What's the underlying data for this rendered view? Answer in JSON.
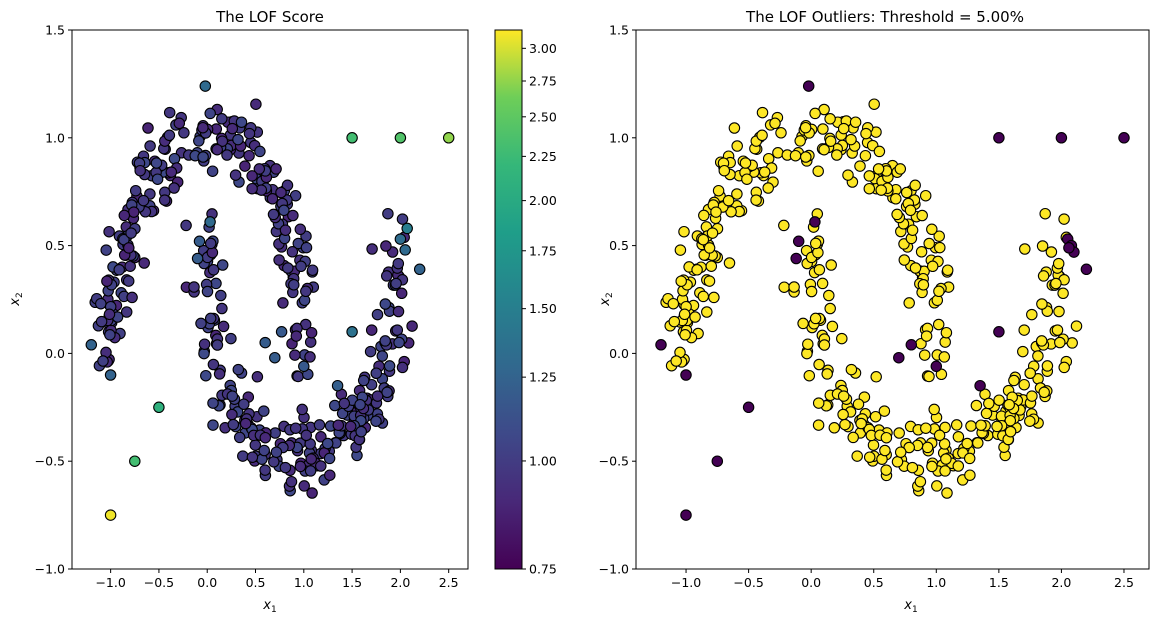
{
  "chart_data": [
    {
      "type": "scatter",
      "title": "The LOF Score",
      "xlabel_var": "x",
      "xlabel_sub": "1",
      "ylabel_var": "x",
      "ylabel_sub": "2",
      "xlim": [
        -1.4,
        2.7
      ],
      "ylim": [
        -1.0,
        1.5
      ],
      "xticks": [
        -1.0,
        -0.5,
        0.0,
        0.5,
        1.0,
        1.5,
        2.0,
        2.5
      ],
      "xtick_labels": [
        "−1.0",
        "−0.5",
        "0.0",
        "0.5",
        "1.0",
        "1.5",
        "2.0",
        "2.5"
      ],
      "yticks": [
        -1.0,
        -0.5,
        0.0,
        0.5,
        1.0,
        1.5
      ],
      "ytick_labels": [
        "−1.0",
        "−0.5",
        "0.0",
        "0.5",
        "1.0",
        "1.5"
      ],
      "color_encoding": "LOF score",
      "colormap": "viridis",
      "colorbar": {
        "scale": "log",
        "range": [
          0.75,
          3.15
        ],
        "ticks": [
          0.75,
          1.0,
          1.25,
          1.5,
          1.75,
          2.0,
          2.25,
          2.5,
          2.75,
          3.0
        ],
        "tick_labels": [
          "0.75",
          "1.00",
          "1.25",
          "1.50",
          "1.75",
          "2.00",
          "2.25",
          "2.50",
          "2.75",
          "3.00"
        ]
      },
      "outlier_points": [
        {
          "x": 1.5,
          "y": 1.0,
          "score": 2.3
        },
        {
          "x": 2.0,
          "y": 1.0,
          "score": 2.4
        },
        {
          "x": 2.5,
          "y": 1.0,
          "score": 2.75
        },
        {
          "x": -1.0,
          "y": -0.75,
          "score": 3.1
        },
        {
          "x": -0.75,
          "y": -0.5,
          "score": 2.3
        },
        {
          "x": -0.5,
          "y": -0.25,
          "score": 2.1
        },
        {
          "x": 2.07,
          "y": 0.58,
          "score": 1.5
        },
        {
          "x": 1.5,
          "y": 0.1,
          "score": 1.38
        },
        {
          "x": -1.0,
          "y": -0.1,
          "score": 1.25
        },
        {
          "x": -0.02,
          "y": 1.24,
          "score": 1.3
        },
        {
          "x": 0.03,
          "y": 0.61,
          "score": 1.3
        },
        {
          "x": 2.0,
          "y": 0.53,
          "score": 1.32
        },
        {
          "x": 2.05,
          "y": 0.48,
          "score": 1.3
        },
        {
          "x": 2.2,
          "y": 0.39,
          "score": 1.25
        },
        {
          "x": -1.2,
          "y": 0.04,
          "score": 1.25
        },
        {
          "x": 1.35,
          "y": -0.15,
          "score": 1.22
        },
        {
          "x": 0.7,
          "y": -0.02,
          "score": 1.2
        },
        {
          "x": 0.6,
          "y": 0.05,
          "score": 1.2
        },
        {
          "x": 1.0,
          "y": -0.06,
          "score": 1.18
        },
        {
          "x": -0.1,
          "y": 0.44,
          "score": 1.2
        },
        {
          "x": -0.08,
          "y": 0.52,
          "score": 1.2
        },
        {
          "x": 0.77,
          "y": 0.1,
          "score": 1.18
        }
      ]
    },
    {
      "type": "scatter",
      "title": "The LOF Outliers: Threshold = 5.00%",
      "xlabel_var": "x",
      "xlabel_sub": "1",
      "ylabel_var": "x",
      "ylabel_sub": "2",
      "xlim": [
        -1.4,
        2.7
      ],
      "ylim": [
        -1.0,
        1.5
      ],
      "xticks": [
        -1.0,
        -0.5,
        0.0,
        0.5,
        1.0,
        1.5,
        2.0,
        2.5
      ],
      "xtick_labels": [
        "−1.0",
        "−0.5",
        "0.0",
        "0.5",
        "1.0",
        "1.5",
        "2.0",
        "2.5"
      ],
      "yticks": [
        -1.0,
        -0.5,
        0.0,
        0.5,
        1.0,
        1.5
      ],
      "ytick_labels": [
        "−1.0",
        "−0.5",
        "0.0",
        "0.5",
        "1.0",
        "1.5"
      ],
      "color_encoding": "outlier flag (threshold 5.00%)",
      "inlier_color": "#fde725",
      "outlier_color": "#440154",
      "outlier_points": [
        {
          "x": 1.5,
          "y": 1.0
        },
        {
          "x": 2.0,
          "y": 1.0
        },
        {
          "x": 2.5,
          "y": 1.0
        },
        {
          "x": -1.0,
          "y": -0.75
        },
        {
          "x": -0.75,
          "y": -0.5
        },
        {
          "x": -0.5,
          "y": -0.25
        },
        {
          "x": -1.0,
          "y": -0.1
        },
        {
          "x": -1.2,
          "y": 0.04
        },
        {
          "x": -0.02,
          "y": 1.24
        },
        {
          "x": 0.03,
          "y": 0.61
        },
        {
          "x": -0.1,
          "y": 0.52
        },
        {
          "x": -0.12,
          "y": 0.44
        },
        {
          "x": 0.7,
          "y": -0.02
        },
        {
          "x": 0.8,
          "y": 0.04
        },
        {
          "x": 1.0,
          "y": -0.06
        },
        {
          "x": 1.35,
          "y": -0.15
        },
        {
          "x": 1.5,
          "y": 0.1
        },
        {
          "x": 2.2,
          "y": 0.39
        },
        {
          "x": 2.05,
          "y": 0.53
        },
        {
          "x": 2.08,
          "y": 0.5
        },
        {
          "x": 2.1,
          "y": 0.47
        },
        {
          "x": 2.06,
          "y": 0.49
        }
      ]
    }
  ],
  "shared_data": {
    "main_cluster": "two interleaving half-moons, about 500 points: upper arc centred (0,0) radius 1, lower arc centred (1,0.5) radius 1, noise about 0.1",
    "inlier_score_range": [
      0.9,
      1.1
    ]
  }
}
